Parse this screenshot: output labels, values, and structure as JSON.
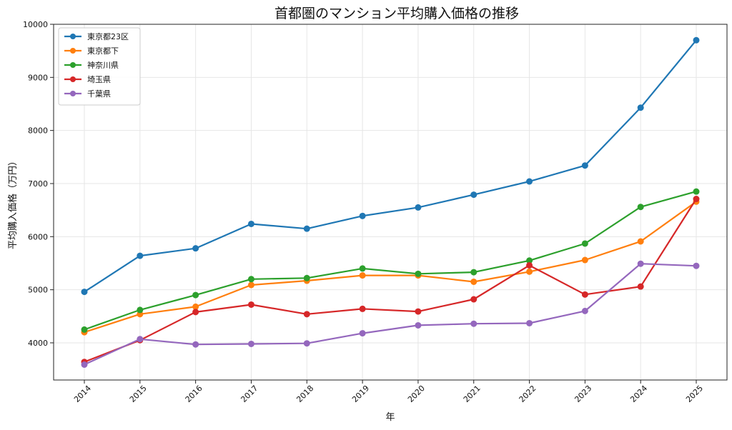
{
  "chart_data": {
    "type": "line",
    "title": "首都圏のマンション平均購入価格の推移",
    "xlabel": "年",
    "ylabel": "平均購入価格（万円）",
    "categories": [
      "2014",
      "2015",
      "2016",
      "2017",
      "2018",
      "2019",
      "2020",
      "2021",
      "2022",
      "2023",
      "2024",
      "2025"
    ],
    "ylim": [
      3300,
      10000
    ],
    "yticks": [
      4000,
      5000,
      6000,
      7000,
      8000,
      9000,
      10000
    ],
    "grid": true,
    "legend_position": "top-left",
    "series": [
      {
        "name": "東京都23区",
        "color": "#1f77b4",
        "values": [
          4960,
          5640,
          5780,
          6240,
          6150,
          6390,
          6550,
          6790,
          7040,
          7340,
          8430,
          9700
        ]
      },
      {
        "name": "東京都下",
        "color": "#ff7f0e",
        "values": [
          4200,
          4540,
          4680,
          5090,
          5170,
          5270,
          5270,
          5150,
          5340,
          5560,
          5910,
          6660
        ]
      },
      {
        "name": "神奈川県",
        "color": "#2ca02c",
        "values": [
          4250,
          4620,
          4900,
          5200,
          5220,
          5400,
          5300,
          5330,
          5550,
          5870,
          6560,
          6850
        ]
      },
      {
        "name": "埼玉県",
        "color": "#d62728",
        "values": [
          3640,
          4050,
          4580,
          4720,
          4540,
          4640,
          4590,
          4820,
          5460,
          4910,
          5060,
          6710
        ]
      },
      {
        "name": "千葉県",
        "color": "#9467bd",
        "values": [
          3590,
          4070,
          3970,
          3980,
          3990,
          4180,
          4330,
          4360,
          4370,
          4600,
          5490,
          5450
        ]
      }
    ]
  }
}
